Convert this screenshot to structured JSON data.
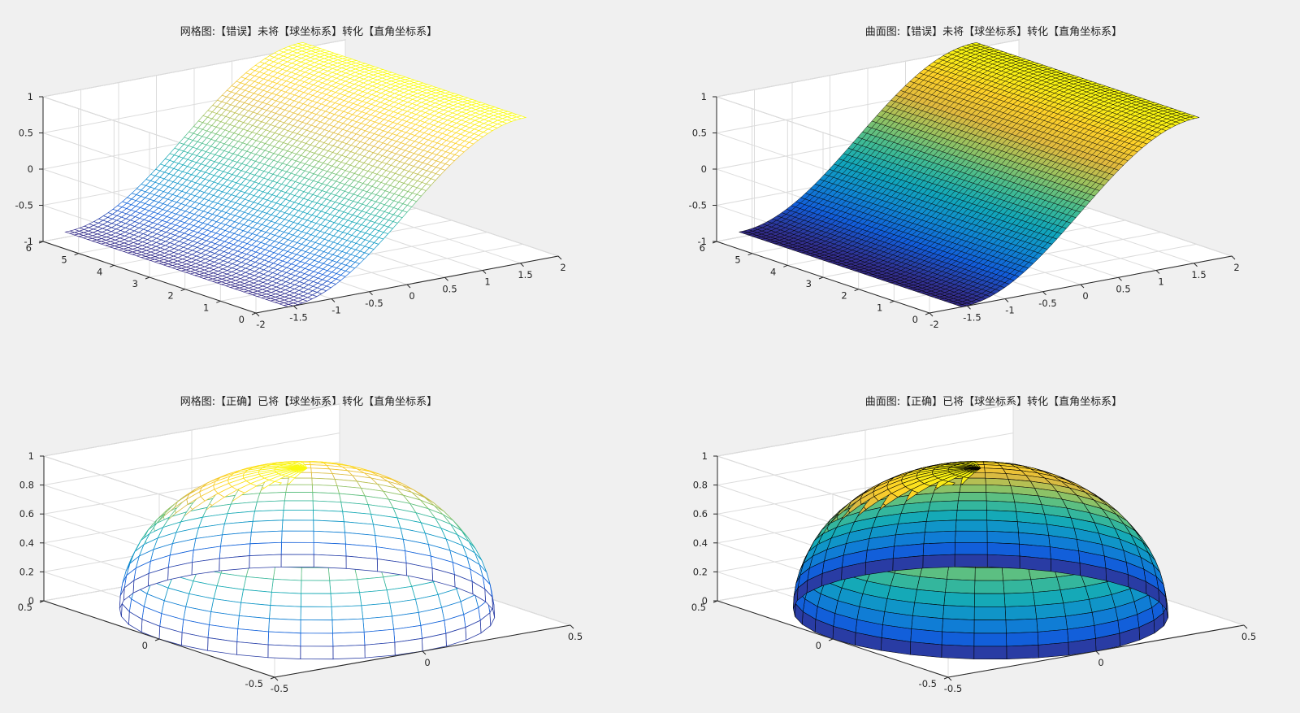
{
  "colors": {
    "figure_background": "#f0f0f0",
    "axes_background": "#ffffff",
    "edge_color_surface": "#000000",
    "colormap": "parula"
  },
  "chart_data": [
    {
      "id": "p1",
      "type": "mesh3d",
      "title": "网格图:【错误】未将【球坐标系】转化【直角坐标系】",
      "surface": "z = sin(x) over x∈[-π/2, π/2], y∈[0, 2π]",
      "render": "mesh",
      "xlim": [
        -2,
        2
      ],
      "ylim": [
        0,
        6
      ],
      "zlim": [
        -1,
        1
      ],
      "xticks": [
        "-2",
        "-1.5",
        "-1",
        "-0.5",
        "0",
        "0.5",
        "1",
        "1.5",
        "2"
      ],
      "yticks": [
        "0",
        "1",
        "2",
        "3",
        "4",
        "5",
        "6"
      ],
      "zticks": [
        "-1",
        "-0.5",
        "0",
        "0.5",
        "1"
      ],
      "grid": true
    },
    {
      "id": "p2",
      "type": "surface3d",
      "title": "曲面图:【错误】未将【球坐标系】转化【直角坐标系】",
      "surface": "z = sin(x) over x∈[-π/2, π/2], y∈[0, 2π]",
      "render": "surf",
      "xlim": [
        -2,
        2
      ],
      "ylim": [
        0,
        6
      ],
      "zlim": [
        -1,
        1
      ],
      "xticks": [
        "-2",
        "-1.5",
        "-1",
        "-0.5",
        "0",
        "0.5",
        "1",
        "1.5",
        "2"
      ],
      "yticks": [
        "0",
        "1",
        "2",
        "3",
        "4",
        "5",
        "6"
      ],
      "zticks": [
        "-1",
        "-0.5",
        "0",
        "0.5",
        "1"
      ],
      "grid": true
    },
    {
      "id": "p3",
      "type": "mesh3d",
      "title": "网格图:【正确】已将【球坐标系】转化【直角坐标系】",
      "surface": "upper hemisphere of ellipsoid, semi-axes a=0.5 (x,y), c=1 (z)",
      "render": "mesh",
      "xlim": [
        -0.5,
        0.5
      ],
      "ylim": [
        -0.5,
        0.5
      ],
      "zlim": [
        0,
        1
      ],
      "xticks": [
        "-0.5",
        "0",
        "0.5"
      ],
      "yticks": [
        "-0.5",
        "0",
        "0.5"
      ],
      "zticks": [
        "0",
        "0.2",
        "0.4",
        "0.6",
        "0.8",
        "1"
      ],
      "grid": true
    },
    {
      "id": "p4",
      "type": "surface3d",
      "title": "曲面图:【正确】已将【球坐标系】转化【直角坐标系】",
      "surface": "upper hemisphere of ellipsoid, semi-axes a=0.5 (x,y), c=1 (z)",
      "render": "surf",
      "xlim": [
        -0.5,
        0.5
      ],
      "ylim": [
        -0.5,
        0.5
      ],
      "zlim": [
        0,
        1
      ],
      "xticks": [
        "-0.5",
        "0",
        "0.5"
      ],
      "yticks": [
        "-0.5",
        "0",
        "0.5"
      ],
      "zticks": [
        "0",
        "0.2",
        "0.4",
        "0.6",
        "0.8",
        "1"
      ],
      "grid": true
    }
  ]
}
